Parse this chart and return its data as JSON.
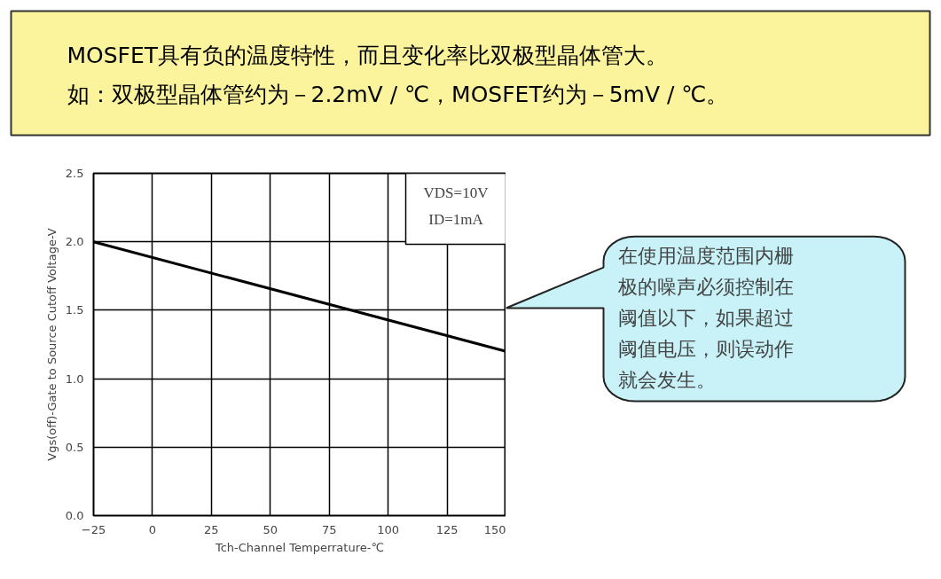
{
  "chart_data": {
    "type": "line",
    "title": "MOSFET具有负的温度特性，而且变化率比双极型晶体管大。",
    "subtitle": "如：双极型晶体管约为－2.2mV / ℃，MOSFET约为－5mV / ℃。",
    "xlabel": "Tch-Channel Temperrature-℃",
    "ylabel": "Vgs(off)-Gate to Source Cutoff Voltage-V",
    "x": [
      -25,
      150
    ],
    "series": [
      {
        "color": "#000000",
        "values": [
          2.0,
          1.2
        ]
      }
    ],
    "xlim": [
      -25,
      150
    ],
    "xticks": [
      -25,
      0,
      25,
      50,
      75,
      100,
      125,
      150
    ],
    "ylim": [
      0,
      2.5
    ],
    "yticks": [
      {
        "value": 0,
        "label": "0.0"
      },
      {
        "value": 0.5,
        "label": "0.5"
      },
      {
        "value": 1,
        "label": "1.0"
      },
      {
        "value": 1.5,
        "label": "1.5"
      },
      {
        "value": 2,
        "label": "2.0"
      },
      2.5
    ],
    "grid": true,
    "marker": "none",
    "line_style": "solid",
    "annotations": [
      "VDS=10V",
      "ID=1mA",
      "在使用温度范围内栅极的噪声必须控制在阈值以下，如果超过阈值电压，则误动作就会发生。"
    ]
  }
}
